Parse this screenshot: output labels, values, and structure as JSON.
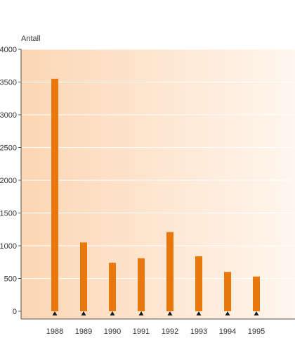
{
  "chart_data": {
    "type": "bar",
    "title": "",
    "xlabel": "",
    "ylabel": "Antall",
    "categories": [
      "1988",
      "1989",
      "1990",
      "1991",
      "1992",
      "1993",
      "1994",
      "1995"
    ],
    "values": [
      3550,
      1050,
      740,
      810,
      1210,
      840,
      600,
      530
    ],
    "ylim": [
      0,
      4000
    ],
    "yticks": [
      0,
      500,
      1000,
      1500,
      2000,
      2500,
      3000,
      3500,
      4000
    ],
    "grid": true,
    "legend": "none",
    "colors": {
      "bar": "#e8780c",
      "background_from": "#fcd6b4",
      "background_to": "#fff6ee",
      "gridline": "#ffffff",
      "axis": "#555555",
      "marker": "#1a1a1a"
    }
  }
}
